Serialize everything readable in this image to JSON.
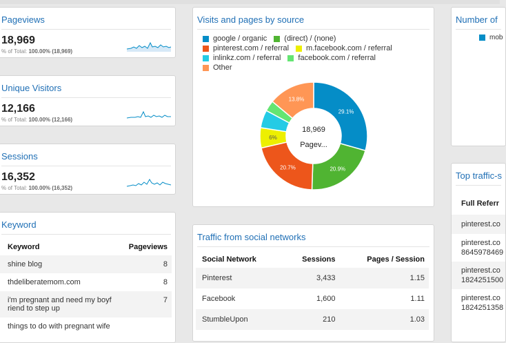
{
  "pageviews": {
    "title": "Pageviews",
    "value": "18,969",
    "sub_label": "% of Total:",
    "sub_value": "100.00% (18,969)"
  },
  "unique_visitors": {
    "title": "Unique Visitors",
    "value": "12,166",
    "sub_label": "% of Total:",
    "sub_value": "100.00% (12,166)"
  },
  "sessions": {
    "title": "Sessions",
    "value": "16,352",
    "sub_label": "% of Total:",
    "sub_value": "100.00% (16,352)"
  },
  "keyword": {
    "title": "Keyword",
    "headers": [
      "Keyword",
      "Pageviews"
    ],
    "rows": [
      [
        "shine blog",
        "8"
      ],
      [
        "thdeliberatemom.com",
        "8"
      ],
      [
        "i'm pregnant and need my boyf riend to step up",
        "7"
      ],
      [
        "things to do with pregnant wife",
        ""
      ]
    ]
  },
  "visits_by_source": {
    "title": "Visits and pages by source",
    "center_value": "18,969",
    "center_label": "Pagev...",
    "legend": [
      {
        "label": "google / organic",
        "color": "#058dc7"
      },
      {
        "label": "(direct) / (none)",
        "color": "#50b432"
      },
      {
        "label": "pinterest.com / referral",
        "color": "#ed561b"
      },
      {
        "label": "m.facebook.com / referral",
        "color": "#edef00"
      },
      {
        "label": "inlinkz.com / referral",
        "color": "#24cbe5"
      },
      {
        "label": "facebook.com / referral",
        "color": "#64e572"
      },
      {
        "label": "Other",
        "color": "#ff9655"
      }
    ]
  },
  "chart_data": {
    "type": "pie",
    "title": "Visits and pages by source",
    "categories": [
      "google / organic",
      "(direct) / (none)",
      "pinterest.com / referral",
      "m.facebook.com / referral",
      "inlinkz.com / referral",
      "facebook.com / referral",
      "Other"
    ],
    "values": [
      29.1,
      20.9,
      20.7,
      6.0,
      5.3,
      3.2,
      13.8
    ],
    "labels": [
      "29.1%",
      "20.9%",
      "20.7%",
      "6%",
      "",
      "",
      "13.8%"
    ],
    "colors": [
      "#058dc7",
      "#50b432",
      "#ed561b",
      "#edef00",
      "#24cbe5",
      "#64e572",
      "#ff9655"
    ]
  },
  "social": {
    "title": "Traffic from social networks",
    "headers": [
      "Social Network",
      "Sessions",
      "Pages / Session"
    ],
    "rows": [
      [
        "Pinterest",
        "3,433",
        "1.15"
      ],
      [
        "Facebook",
        "1,600",
        "1.11"
      ],
      [
        "StumbleUpon",
        "210",
        "1.03"
      ]
    ]
  },
  "number_card": {
    "title": "Number of",
    "legend_label": "mob",
    "legend_color": "#058dc7"
  },
  "top_traffic": {
    "title": "Top traffic-s",
    "header": "Full Referr",
    "rows": [
      [
        "pinterest.co"
      ],
      [
        "pinterest.co",
        "8645978469"
      ],
      [
        "pinterest.co",
        "1824251500"
      ],
      [
        "pinterest.co",
        "1824251358"
      ]
    ]
  }
}
